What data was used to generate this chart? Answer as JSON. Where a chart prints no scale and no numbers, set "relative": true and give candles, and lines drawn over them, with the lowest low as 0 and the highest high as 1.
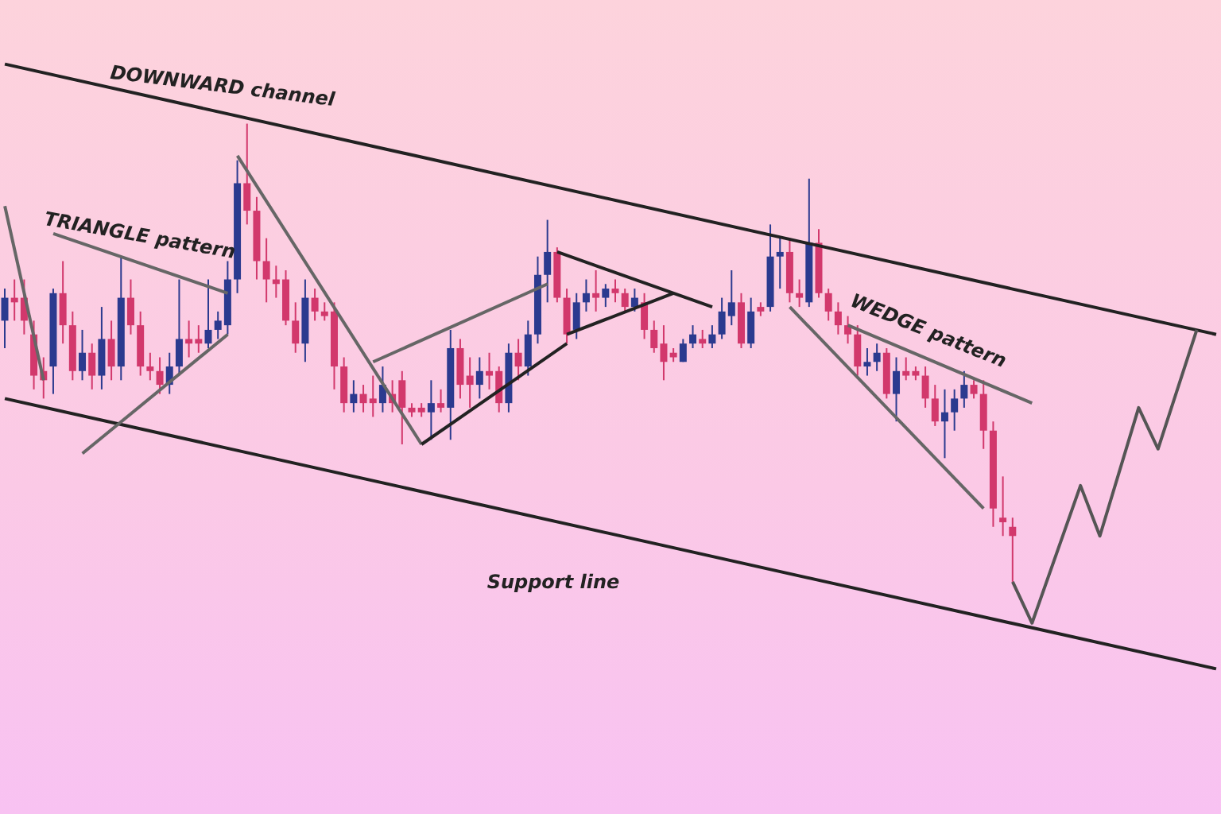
{
  "chart_data": {
    "type": "candlestick",
    "relative": true,
    "categories": [
      null,
      null,
      null,
      null,
      null,
      null,
      null,
      null,
      null,
      null,
      null,
      null,
      null,
      null,
      null,
      null,
      null,
      null,
      null,
      null,
      null,
      null,
      null,
      null,
      null,
      null,
      null,
      null,
      null,
      null,
      null,
      null,
      null,
      null,
      null,
      null,
      null,
      null,
      null,
      null,
      null,
      null,
      null,
      null,
      null,
      null,
      null,
      null,
      null,
      null,
      null,
      null,
      null,
      null,
      null,
      null,
      null,
      null,
      null,
      null,
      null,
      null,
      null,
      null,
      null,
      null,
      null,
      null,
      null,
      null,
      null,
      null,
      null,
      null,
      null,
      null,
      null,
      null,
      null,
      null,
      null,
      null,
      null,
      null,
      null,
      null,
      null,
      null,
      null,
      null,
      null,
      null,
      null,
      null,
      null,
      null,
      null,
      null,
      null,
      null,
      null,
      null,
      null,
      null,
      null,
      null,
      null,
      null,
      null,
      null,
      null,
      null,
      null,
      null,
      null,
      null,
      null,
      null,
      null,
      null,
      null,
      null,
      null,
      null,
      null,
      null
    ],
    "colors": [
      "#2b3a8f",
      "#d2386c",
      "#d2386c",
      "#d2386c",
      "#d2386c",
      "#2b3a8f",
      "#d2386c",
      "#d2386c",
      "#2b3a8f",
      "#d2386c",
      "#2b3a8f",
      "#d2386c",
      "#2b3a8f",
      "#d2386c",
      "#d2386c",
      "#d2386c",
      "#d2386c",
      "#2b3a8f",
      "#2b3a8f",
      "#d2386c",
      "#d2386c",
      "#2b3a8f",
      "#2b3a8f",
      "#2b3a8f",
      "#2b3a8f",
      "#d2386c",
      "#d2386c",
      "#d2386c",
      "#d2386c",
      "#d2386c",
      "#d2386c",
      "#2b3a8f",
      "#d2386c",
      "#d2386c",
      "#d2386c",
      "#d2386c",
      "#2b3a8f",
      "#d2386c",
      "#d2386c",
      "#2b3a8f",
      "#d2386c",
      "#d2386c",
      "#d2386c",
      "#d2386c",
      "#2b3a8f",
      "#d2386c",
      "#2b3a8f",
      "#d2386c",
      "#d2386c",
      "#2b3a8f",
      "#d2386c",
      "#d2386c",
      "#2b3a8f",
      "#d2386c",
      "#2b3a8f",
      "#2b3a8f",
      "#2b3a8f",
      "#d2386c",
      "#d2386c",
      "#2b3a8f",
      "#2b3a8f",
      "#d2386c",
      "#2b3a8f",
      "#d2386c",
      "#d2386c",
      "#2b3a8f",
      "#d2386c",
      "#d2386c",
      "#d2386c",
      "#d2386c",
      "#2b3a8f",
      "#2b3a8f",
      "#d2386c",
      "#2b3a8f",
      "#2b3a8f",
      "#2b3a8f",
      "#d2386c",
      "#2b3a8f",
      "#d2386c",
      "#2b3a8f",
      "#2b3a8f",
      "#d2386c",
      "#d2386c",
      "#2b3a8f",
      "#d2386c",
      "#d2386c",
      "#d2386c",
      "#d2386c",
      "#d2386c",
      "#2b3a8f",
      "#2b3a8f",
      "#d2386c",
      "#2b3a8f",
      "#d2386c",
      "#d2386c",
      "#d2386c",
      "#d2386c",
      "#2b3a8f",
      "#2b3a8f",
      "#2b3a8f",
      "#d2386c",
      "#d2386c",
      "#d2386c",
      "#d2386c",
      "#d2386c",
      null,
      null,
      null,
      null,
      null,
      null,
      null,
      null,
      null,
      null,
      null,
      null,
      null,
      null,
      null,
      null,
      null,
      null,
      null,
      null,
      null
    ],
    "ohlc": [
      [
        0.57,
        0.64,
        0.51,
        0.62
      ],
      [
        0.62,
        0.66,
        0.57,
        0.61
      ],
      [
        0.62,
        0.66,
        0.54,
        0.57
      ],
      [
        0.54,
        0.57,
        0.42,
        0.45
      ],
      [
        0.46,
        0.49,
        0.4,
        0.44
      ],
      [
        0.47,
        0.64,
        0.41,
        0.63
      ],
      [
        0.63,
        0.7,
        0.52,
        0.56
      ],
      [
        0.56,
        0.59,
        0.44,
        0.46
      ],
      [
        0.46,
        0.55,
        0.44,
        0.5
      ],
      [
        0.5,
        0.52,
        0.42,
        0.45
      ],
      [
        0.45,
        0.6,
        0.42,
        0.53
      ],
      [
        0.53,
        0.57,
        0.44,
        0.47
      ],
      [
        0.47,
        0.71,
        0.44,
        0.62
      ],
      [
        0.62,
        0.66,
        0.54,
        0.56
      ],
      [
        0.56,
        0.59,
        0.45,
        0.47
      ],
      [
        0.47,
        0.5,
        0.44,
        0.46
      ],
      [
        0.46,
        0.49,
        0.41,
        0.43
      ],
      [
        0.43,
        0.5,
        0.41,
        0.47
      ],
      [
        0.47,
        0.66,
        0.45,
        0.53
      ],
      [
        0.53,
        0.57,
        0.49,
        0.52
      ],
      [
        0.53,
        0.56,
        0.5,
        0.52
      ],
      [
        0.52,
        0.66,
        0.51,
        0.55
      ],
      [
        0.55,
        0.59,
        0.53,
        0.57
      ],
      [
        0.56,
        0.7,
        0.54,
        0.66
      ],
      [
        0.66,
        0.92,
        0.63,
        0.87
      ],
      [
        0.87,
        1.0,
        0.78,
        0.81
      ],
      [
        0.81,
        0.84,
        0.66,
        0.7
      ],
      [
        0.7,
        0.75,
        0.61,
        0.66
      ],
      [
        0.66,
        0.69,
        0.62,
        0.65
      ],
      [
        0.66,
        0.68,
        0.56,
        0.57
      ],
      [
        0.57,
        0.61,
        0.5,
        0.52
      ],
      [
        0.52,
        0.66,
        0.48,
        0.62
      ],
      [
        0.62,
        0.64,
        0.57,
        0.59
      ],
      [
        0.59,
        0.61,
        0.57,
        0.58
      ],
      [
        0.59,
        0.61,
        0.42,
        0.47
      ],
      [
        0.47,
        0.49,
        0.37,
        0.39
      ],
      [
        0.39,
        0.44,
        0.37,
        0.41
      ],
      [
        0.41,
        0.43,
        0.37,
        0.39
      ],
      [
        0.4,
        0.45,
        0.36,
        0.39
      ],
      [
        0.39,
        0.47,
        0.37,
        0.43
      ],
      [
        0.41,
        0.44,
        0.37,
        0.39
      ],
      [
        0.44,
        0.46,
        0.3,
        0.38
      ],
      [
        0.38,
        0.39,
        0.36,
        0.37
      ],
      [
        0.38,
        0.39,
        0.36,
        0.37
      ],
      [
        0.37,
        0.44,
        0.31,
        0.39
      ],
      [
        0.39,
        0.42,
        0.37,
        0.38
      ],
      [
        0.38,
        0.55,
        0.31,
        0.51
      ],
      [
        0.51,
        0.53,
        0.4,
        0.43
      ],
      [
        0.45,
        0.49,
        0.38,
        0.43
      ],
      [
        0.43,
        0.49,
        0.4,
        0.46
      ],
      [
        0.46,
        0.5,
        0.42,
        0.45
      ],
      [
        0.46,
        0.47,
        0.37,
        0.39
      ],
      [
        0.39,
        0.52,
        0.37,
        0.5
      ],
      [
        0.5,
        0.53,
        0.44,
        0.47
      ],
      [
        0.47,
        0.57,
        0.45,
        0.54
      ],
      [
        0.54,
        0.71,
        0.52,
        0.67
      ],
      [
        0.67,
        0.79,
        0.61,
        0.72
      ],
      [
        0.72,
        0.73,
        0.61,
        0.62
      ],
      [
        0.62,
        0.64,
        0.52,
        0.54
      ],
      [
        0.55,
        0.63,
        0.53,
        0.61
      ],
      [
        0.61,
        0.66,
        0.59,
        0.63
      ],
      [
        0.63,
        0.68,
        0.59,
        0.62
      ],
      [
        0.62,
        0.65,
        0.6,
        0.64
      ],
      [
        0.64,
        0.66,
        0.61,
        0.63
      ],
      [
        0.63,
        0.64,
        0.59,
        0.6
      ],
      [
        0.6,
        0.64,
        0.59,
        0.62
      ],
      [
        0.61,
        0.63,
        0.53,
        0.55
      ],
      [
        0.55,
        0.57,
        0.5,
        0.51
      ],
      [
        0.52,
        0.56,
        0.44,
        0.48
      ],
      [
        0.5,
        0.51,
        0.48,
        0.49
      ],
      [
        0.48,
        0.53,
        0.48,
        0.52
      ],
      [
        0.52,
        0.56,
        0.51,
        0.54
      ],
      [
        0.53,
        0.55,
        0.51,
        0.52
      ],
      [
        0.52,
        0.56,
        0.51,
        0.54
      ],
      [
        0.54,
        0.62,
        0.53,
        0.59
      ],
      [
        0.58,
        0.68,
        0.56,
        0.61
      ],
      [
        0.61,
        0.63,
        0.51,
        0.52
      ],
      [
        0.52,
        0.62,
        0.51,
        0.59
      ],
      [
        0.6,
        0.61,
        0.58,
        0.59
      ],
      [
        0.6,
        0.78,
        0.59,
        0.71
      ],
      [
        0.71,
        0.75,
        0.64,
        0.72
      ],
      [
        0.72,
        0.75,
        0.61,
        0.63
      ],
      [
        0.63,
        0.66,
        0.6,
        0.62
      ],
      [
        0.61,
        0.88,
        0.6,
        0.74
      ],
      [
        0.74,
        0.77,
        0.62,
        0.63
      ],
      [
        0.63,
        0.64,
        0.57,
        0.59
      ],
      [
        0.59,
        0.61,
        0.54,
        0.56
      ],
      [
        0.56,
        0.58,
        0.52,
        0.54
      ],
      [
        0.54,
        0.56,
        0.45,
        0.47
      ],
      [
        0.47,
        0.51,
        0.45,
        0.48
      ],
      [
        0.48,
        0.52,
        0.46,
        0.5
      ],
      [
        0.5,
        0.51,
        0.4,
        0.41
      ],
      [
        0.41,
        0.49,
        0.35,
        0.46
      ],
      [
        0.46,
        0.49,
        0.44,
        0.45
      ],
      [
        0.46,
        0.47,
        0.44,
        0.45
      ],
      [
        0.45,
        0.47,
        0.38,
        0.4
      ],
      [
        0.4,
        0.43,
        0.34,
        0.35
      ],
      [
        0.35,
        0.42,
        0.27,
        0.37
      ],
      [
        0.37,
        0.42,
        0.33,
        0.4
      ],
      [
        0.4,
        0.46,
        0.38,
        0.43
      ],
      [
        0.43,
        0.44,
        0.4,
        0.41
      ],
      [
        0.41,
        0.44,
        0.29,
        0.33
      ],
      [
        0.33,
        0.35,
        0.12,
        0.16
      ],
      [
        0.14,
        0.23,
        0.1,
        0.13
      ],
      [
        0.12,
        0.14,
        0.0,
        0.1
      ],
      null,
      null,
      null,
      null,
      null,
      null,
      null,
      null,
      null,
      null,
      null,
      null,
      null,
      null,
      null,
      null,
      null,
      null,
      null,
      null,
      null
    ],
    "series": [
      {
        "type": "line",
        "color": "#222222",
        "values": [
          1.13,
          null,
          null,
          null,
          null,
          null,
          null,
          null,
          null,
          null,
          null,
          null,
          null,
          null,
          null,
          null,
          null,
          null,
          null,
          null,
          null,
          null,
          null,
          null,
          null,
          null,
          null,
          null,
          null,
          null,
          null,
          null,
          null,
          null,
          null,
          null,
          null,
          null,
          null,
          null,
          null,
          null,
          null,
          null,
          null,
          null,
          null,
          null,
          null,
          null,
          null,
          null,
          null,
          null,
          null,
          null,
          null,
          null,
          null,
          null,
          null,
          null,
          null,
          null,
          null,
          null,
          null,
          null,
          null,
          null,
          null,
          null,
          null,
          null,
          null,
          null,
          null,
          null,
          null,
          null,
          null,
          null,
          null,
          null,
          null,
          null,
          null,
          null,
          null,
          null,
          null,
          null,
          null,
          null,
          null,
          null,
          null,
          null,
          null,
          null,
          null,
          null,
          null,
          null,
          null,
          null,
          null,
          null,
          null,
          null,
          null,
          null,
          null,
          null,
          null,
          null,
          null,
          null,
          null,
          null,
          null,
          null,
          null,
          null,
          null,
          0.54
        ]
      },
      {
        "type": "line",
        "color": "#222222",
        "values": [
          0.4,
          null,
          null,
          null,
          null,
          null,
          null,
          null,
          null,
          null,
          null,
          null,
          null,
          null,
          null,
          null,
          null,
          null,
          null,
          null,
          null,
          null,
          null,
          null,
          null,
          null,
          null,
          null,
          null,
          null,
          null,
          null,
          null,
          null,
          null,
          null,
          null,
          null,
          null,
          null,
          null,
          null,
          null,
          null,
          null,
          null,
          null,
          null,
          null,
          null,
          null,
          null,
          null,
          null,
          null,
          null,
          null,
          null,
          null,
          null,
          null,
          null,
          null,
          null,
          null,
          null,
          null,
          null,
          null,
          null,
          null,
          null,
          null,
          null,
          null,
          null,
          null,
          null,
          null,
          null,
          null,
          null,
          null,
          null,
          null,
          null,
          null,
          null,
          null,
          null,
          null,
          null,
          null,
          null,
          null,
          null,
          null,
          null,
          null,
          null,
          null,
          null,
          null,
          null,
          null,
          null,
          null,
          null,
          null,
          null,
          null,
          null,
          null,
          null,
          null,
          null,
          null,
          null,
          null,
          null,
          null,
          null,
          null,
          null,
          null,
          -0.19
        ]
      },
      {
        "type": "line",
        "color": "#555555",
        "values": [
          null,
          null,
          null,
          null,
          null,
          null,
          null,
          null,
          null,
          null,
          null,
          null,
          null,
          null,
          null,
          null,
          null,
          null,
          null,
          null,
          null,
          null,
          null,
          null,
          null,
          null,
          null,
          null,
          null,
          null,
          null,
          null,
          null,
          null,
          null,
          null,
          null,
          null,
          null,
          null,
          null,
          null,
          null,
          null,
          null,
          null,
          null,
          null,
          null,
          null,
          null,
          null,
          null,
          null,
          null,
          null,
          null,
          null,
          null,
          null,
          null,
          null,
          null,
          null,
          null,
          null,
          null,
          null,
          null,
          null,
          null,
          null,
          null,
          null,
          null,
          null,
          null,
          null,
          null,
          null,
          null,
          null,
          null,
          null,
          null,
          null,
          null,
          null,
          null,
          null,
          null,
          null,
          null,
          null,
          null,
          null,
          null,
          null,
          null,
          null,
          null,
          null,
          null,
          null,
          0.0,
          null,
          -0.09,
          null,
          null,
          null,
          null,
          0.21,
          null,
          0.1,
          null,
          null,
          null,
          0.38,
          null,
          0.29,
          null,
          null,
          null,
          0.55,
          null,
          null
        ]
      },
      {
        "type": "line",
        "color": "#666666",
        "values": [
          null,
          null,
          null,
          null,
          null,
          0.76,
          null,
          null,
          null,
          null,
          null,
          null,
          null,
          null,
          null,
          null,
          null,
          null,
          null,
          null,
          null,
          null,
          null,
          0.63,
          null,
          null,
          null,
          null,
          null,
          null,
          null,
          null,
          null,
          null,
          null,
          null,
          null,
          null,
          null,
          null,
          null,
          null,
          null,
          null,
          null,
          null,
          null,
          null,
          null,
          null,
          null,
          null,
          null,
          null,
          null,
          null,
          null,
          null,
          null,
          null,
          null,
          null,
          null,
          null,
          null,
          null,
          null,
          null,
          null,
          null,
          null,
          null,
          null,
          null,
          null,
          null,
          null,
          null,
          null,
          null,
          null,
          null,
          null,
          null,
          null,
          null,
          null,
          null,
          null,
          null,
          null,
          null,
          null,
          null,
          null,
          null,
          null,
          null,
          null,
          null,
          null,
          null,
          null,
          null,
          null,
          null,
          null,
          null,
          null,
          null,
          null,
          null,
          null,
          null,
          null,
          null,
          null,
          null,
          null,
          null,
          null,
          null,
          null,
          null,
          null,
          null
        ]
      },
      {
        "type": "line",
        "color": "#666666",
        "values": [
          null,
          null,
          null,
          null,
          null,
          null,
          null,
          null,
          0.28,
          null,
          null,
          null,
          null,
          null,
          null,
          null,
          null,
          null,
          null,
          null,
          null,
          null,
          null,
          0.54,
          null,
          null,
          null,
          null,
          null,
          null,
          null,
          null,
          null,
          null,
          null,
          null,
          null,
          null,
          null,
          null,
          null,
          null,
          null,
          null,
          null,
          null,
          null,
          null,
          null,
          null,
          null,
          null,
          null,
          null,
          null,
          null,
          null,
          null,
          null,
          null,
          null,
          null,
          null,
          null,
          null,
          null,
          null,
          null,
          null,
          null,
          null,
          null,
          null,
          null,
          null,
          null,
          null,
          null,
          null,
          null,
          null,
          null,
          null,
          null,
          null,
          null,
          null,
          null,
          null,
          null,
          null,
          null,
          null,
          null,
          null,
          null,
          null,
          null,
          null,
          null,
          null,
          null,
          null,
          null,
          null,
          null,
          null,
          null,
          null,
          null,
          null,
          null,
          null,
          null,
          null,
          null,
          null,
          null,
          null,
          null,
          null,
          null,
          null,
          null,
          null,
          null
        ]
      },
      {
        "type": "line",
        "color": "#666666",
        "values": [
          0.82,
          null,
          null,
          null,
          0.44,
          null,
          null,
          null,
          null,
          null,
          null,
          null,
          null,
          null,
          null,
          null,
          null,
          null,
          null,
          null,
          null,
          null,
          null,
          null,
          null,
          null,
          null,
          null,
          null,
          null,
          null,
          null,
          null,
          null,
          null,
          null,
          null,
          null,
          null,
          null,
          null,
          null,
          null,
          null,
          null,
          null,
          null,
          null,
          null,
          null,
          null,
          null,
          null,
          null,
          null,
          null,
          null,
          null,
          null,
          null,
          null,
          null,
          null,
          null,
          null,
          null,
          null,
          null,
          null,
          null,
          null,
          null,
          null,
          null,
          null,
          null,
          null,
          null,
          null,
          null,
          null,
          null,
          null,
          null,
          null,
          null,
          null,
          null,
          null,
          null,
          null,
          null,
          null,
          null,
          null,
          null,
          null,
          null,
          null,
          null,
          null,
          null,
          null,
          null,
          null,
          null,
          null,
          null,
          null,
          null,
          null,
          null,
          null,
          null,
          null,
          null,
          null,
          null,
          null,
          null,
          null,
          null,
          null,
          null,
          null,
          null
        ]
      },
      {
        "type": "line",
        "color": "#666666",
        "values": [
          null,
          null,
          null,
          null,
          null,
          null,
          null,
          null,
          null,
          null,
          null,
          null,
          null,
          null,
          null,
          null,
          null,
          null,
          null,
          null,
          null,
          null,
          null,
          null,
          0.93,
          null,
          null,
          null,
          null,
          null,
          null,
          null,
          null,
          null,
          null,
          null,
          null,
          null,
          null,
          null,
          null,
          null,
          null,
          0.3,
          null,
          null,
          null,
          null,
          null,
          null,
          null,
          null,
          null,
          null,
          null,
          null,
          null,
          null,
          null,
          null,
          null,
          null,
          null,
          null,
          null,
          null,
          null,
          null,
          null,
          null,
          null,
          null,
          null,
          null,
          null,
          null,
          null,
          null,
          null,
          null,
          null,
          null,
          null,
          null,
          null,
          null,
          null,
          null,
          null,
          null,
          null,
          null,
          null,
          null,
          null,
          null,
          null,
          null,
          null,
          null,
          null,
          null,
          null,
          null,
          null,
          null,
          null,
          null,
          null,
          null,
          null,
          null,
          null,
          null,
          null,
          null,
          null,
          null,
          null,
          null,
          null,
          null,
          null,
          null,
          null,
          null
        ]
      },
      {
        "type": "line",
        "color": "#666666",
        "values": [
          null,
          null,
          null,
          null,
          null,
          null,
          null,
          null,
          null,
          null,
          null,
          null,
          null,
          null,
          null,
          null,
          null,
          null,
          null,
          null,
          null,
          null,
          null,
          null,
          null,
          null,
          null,
          null,
          null,
          null,
          null,
          null,
          null,
          null,
          null,
          null,
          null,
          null,
          0.48,
          null,
          null,
          null,
          null,
          null,
          null,
          null,
          null,
          null,
          null,
          null,
          null,
          null,
          null,
          null,
          null,
          null,
          0.65,
          null,
          null,
          null,
          null,
          null,
          null,
          null,
          null,
          null,
          null,
          null,
          null,
          null,
          null,
          null,
          null,
          null,
          null,
          null,
          null,
          null,
          null,
          null,
          null,
          null,
          null,
          null,
          null,
          null,
          null,
          null,
          null,
          null,
          null,
          null,
          null,
          null,
          null,
          null,
          null,
          null,
          null,
          null,
          null,
          null,
          null,
          null,
          null,
          null,
          null,
          null,
          null,
          null,
          null,
          null,
          null,
          null,
          null,
          null,
          null,
          null,
          null,
          null,
          null,
          null,
          null,
          null,
          null,
          null
        ]
      },
      {
        "type": "line",
        "color": "#222222",
        "values": [
          null,
          null,
          null,
          null,
          null,
          null,
          null,
          null,
          null,
          null,
          null,
          null,
          null,
          null,
          null,
          null,
          null,
          null,
          null,
          null,
          null,
          null,
          null,
          null,
          null,
          null,
          null,
          null,
          null,
          null,
          null,
          null,
          null,
          null,
          null,
          null,
          null,
          null,
          null,
          null,
          null,
          null,
          null,
          0.3,
          null,
          null,
          null,
          null,
          null,
          null,
          null,
          null,
          null,
          null,
          null,
          null,
          null,
          null,
          0.52,
          null,
          null,
          null,
          null,
          null,
          null,
          null,
          null,
          null,
          null,
          null,
          null,
          null,
          null,
          null,
          null,
          null,
          null,
          null,
          null,
          null,
          null,
          null,
          null,
          null,
          null,
          null,
          null,
          null,
          null,
          null,
          null,
          null,
          null,
          null,
          null,
          null,
          null,
          null,
          null,
          null,
          null,
          null,
          null,
          null,
          null,
          null,
          null,
          null,
          null,
          null,
          null,
          null,
          null,
          null,
          null,
          null,
          null,
          null,
          null,
          null,
          null,
          null,
          null,
          null,
          null,
          null
        ]
      },
      {
        "type": "line",
        "color": "#222222",
        "values": [
          null,
          null,
          null,
          null,
          null,
          null,
          null,
          null,
          null,
          null,
          null,
          null,
          null,
          null,
          null,
          null,
          null,
          null,
          null,
          null,
          null,
          null,
          null,
          null,
          null,
          null,
          null,
          null,
          null,
          null,
          null,
          null,
          null,
          null,
          null,
          null,
          null,
          null,
          null,
          null,
          null,
          null,
          null,
          null,
          null,
          null,
          null,
          null,
          null,
          null,
          null,
          null,
          null,
          null,
          null,
          null,
          null,
          0.72,
          null,
          null,
          null,
          null,
          null,
          null,
          null,
          null,
          null,
          null,
          null,
          null,
          null,
          null,
          null,
          0.6,
          null,
          null,
          null,
          null,
          null,
          null,
          null,
          null,
          null,
          null,
          null,
          null,
          null,
          null,
          null,
          null,
          null,
          null,
          null,
          null,
          null,
          null,
          null,
          null,
          null,
          null,
          null,
          null,
          null,
          null,
          null,
          null,
          null,
          null,
          null,
          null,
          null,
          null,
          null,
          null,
          null,
          null,
          null,
          null,
          null,
          null,
          null,
          null,
          null,
          null,
          null,
          null
        ]
      },
      {
        "type": "line",
        "color": "#222222",
        "values": [
          null,
          null,
          null,
          null,
          null,
          null,
          null,
          null,
          null,
          null,
          null,
          null,
          null,
          null,
          null,
          null,
          null,
          null,
          null,
          null,
          null,
          null,
          null,
          null,
          null,
          null,
          null,
          null,
          null,
          null,
          null,
          null,
          null,
          null,
          null,
          null,
          null,
          null,
          null,
          null,
          null,
          null,
          null,
          null,
          null,
          null,
          null,
          null,
          null,
          null,
          null,
          null,
          null,
          null,
          null,
          null,
          null,
          null,
          0.54,
          null,
          null,
          null,
          null,
          null,
          null,
          null,
          null,
          null,
          null,
          0.63,
          null,
          null,
          null,
          null,
          null,
          null,
          null,
          null,
          null,
          null,
          null,
          null,
          null,
          null,
          null,
          null,
          null,
          null,
          null,
          null,
          null,
          null,
          null,
          null,
          null,
          null,
          null,
          null,
          null,
          null,
          null,
          null,
          null,
          null,
          null,
          null,
          null,
          null,
          null,
          null,
          null,
          null,
          null,
          null,
          null,
          null,
          null,
          null,
          null,
          null,
          null,
          null,
          null,
          null,
          null,
          null
        ]
      },
      {
        "type": "line",
        "color": "#666666",
        "values": [
          null,
          null,
          null,
          null,
          null,
          null,
          null,
          null,
          null,
          null,
          null,
          null,
          null,
          null,
          null,
          null,
          null,
          null,
          null,
          null,
          null,
          null,
          null,
          null,
          null,
          null,
          null,
          null,
          null,
          null,
          null,
          null,
          null,
          null,
          null,
          null,
          null,
          null,
          null,
          null,
          null,
          null,
          null,
          null,
          null,
          null,
          null,
          null,
          null,
          null,
          null,
          null,
          null,
          null,
          null,
          null,
          null,
          null,
          null,
          null,
          null,
          null,
          null,
          null,
          null,
          null,
          null,
          null,
          null,
          null,
          null,
          null,
          null,
          null,
          null,
          null,
          null,
          null,
          null,
          null,
          null,
          null,
          null,
          null,
          null,
          null,
          null,
          0.56,
          null,
          null,
          null,
          null,
          null,
          null,
          null,
          null,
          null,
          null,
          null,
          null,
          null,
          null,
          null,
          null,
          null,
          null,
          0.39,
          null,
          null,
          null,
          null,
          null,
          null,
          null,
          null,
          null,
          null,
          null,
          null,
          null,
          null,
          null,
          null,
          null,
          null,
          null
        ]
      },
      {
        "type": "line",
        "color": "#666666",
        "values": [
          null,
          null,
          null,
          null,
          null,
          null,
          null,
          null,
          null,
          null,
          null,
          null,
          null,
          null,
          null,
          null,
          null,
          null,
          null,
          null,
          null,
          null,
          null,
          null,
          null,
          null,
          null,
          null,
          null,
          null,
          null,
          null,
          null,
          null,
          null,
          null,
          null,
          null,
          null,
          null,
          null,
          null,
          null,
          null,
          null,
          null,
          null,
          null,
          null,
          null,
          null,
          null,
          null,
          null,
          null,
          null,
          null,
          null,
          null,
          null,
          null,
          null,
          null,
          null,
          null,
          null,
          null,
          null,
          null,
          null,
          null,
          null,
          null,
          null,
          null,
          null,
          null,
          null,
          null,
          null,
          null,
          0.6,
          null,
          null,
          null,
          null,
          null,
          null,
          null,
          null,
          null,
          null,
          null,
          null,
          null,
          null,
          null,
          null,
          null,
          null,
          null,
          0.16,
          null,
          null,
          null,
          null,
          null,
          null,
          null,
          null,
          null,
          null,
          null,
          null,
          null,
          null,
          null,
          null,
          null,
          null,
          null,
          null,
          null,
          null,
          null,
          null
        ]
      }
    ],
    "annotations": [
      "DOWNWARD channel",
      "TRIANGLE pattern",
      "WEDGE pattern",
      "Support line"
    ]
  }
}
